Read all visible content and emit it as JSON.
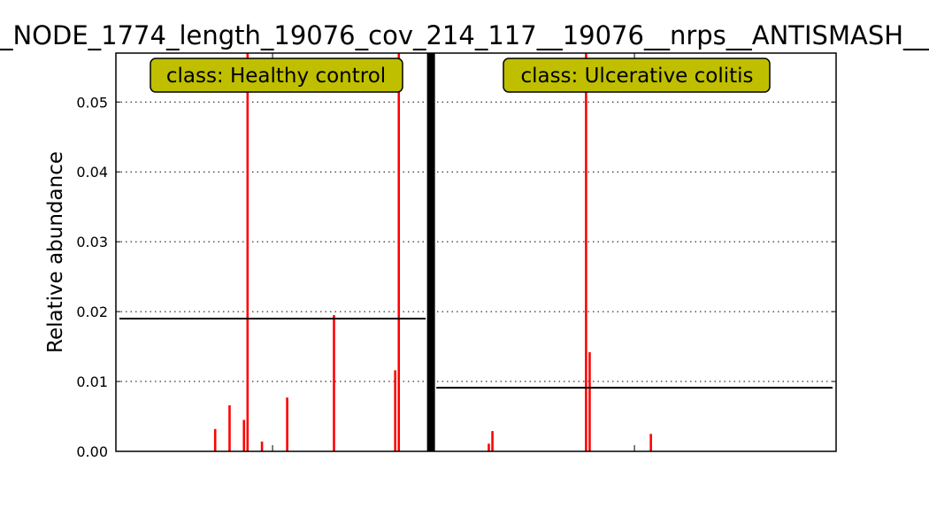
{
  "chart_data": {
    "type": "bar",
    "title": "_NODE_1774_length_19076_cov_214_117__19076__nrps__ANTISMASH__",
    "xlabel": "",
    "ylabel": "Relative abundance",
    "ylim": [
      0,
      0.057
    ],
    "yticks": [
      "0.00",
      "0.01",
      "0.02",
      "0.03",
      "0.04",
      "0.05"
    ],
    "ytick_values": [
      0,
      0.01,
      0.02,
      0.03,
      0.04,
      0.05
    ],
    "grid": "horizontal dotted",
    "bar_color": "#ff0000",
    "mean_line_color": "#000000",
    "box_color": "#bfbf00",
    "total_samples": 200,
    "groups": [
      {
        "label": "class: Healthy control",
        "mean": 0.019,
        "start_index": 0,
        "count": 87,
        "bars": [
          {
            "index": 27,
            "value": 0.0032
          },
          {
            "index": 31,
            "value": 0.0066
          },
          {
            "index": 35,
            "value": 0.0045
          },
          {
            "index": 36,
            "value": 0.057
          },
          {
            "index": 40,
            "value": 0.0014
          },
          {
            "index": 47,
            "value": 0.0077
          },
          {
            "index": 60,
            "value": 0.0195
          },
          {
            "index": 77,
            "value": 0.0116
          },
          {
            "index": 78,
            "value": 0.057
          }
        ]
      },
      {
        "label": "class: Ulcerative colitis",
        "mean": 0.0091,
        "start_index": 88,
        "count": 112,
        "bars": [
          {
            "index": 103,
            "value": 0.0011
          },
          {
            "index": 104,
            "value": 0.0029
          },
          {
            "index": 130,
            "value": 0.057
          },
          {
            "index": 131,
            "value": 0.0142
          },
          {
            "index": 148,
            "value": 0.0025
          }
        ]
      }
    ]
  }
}
